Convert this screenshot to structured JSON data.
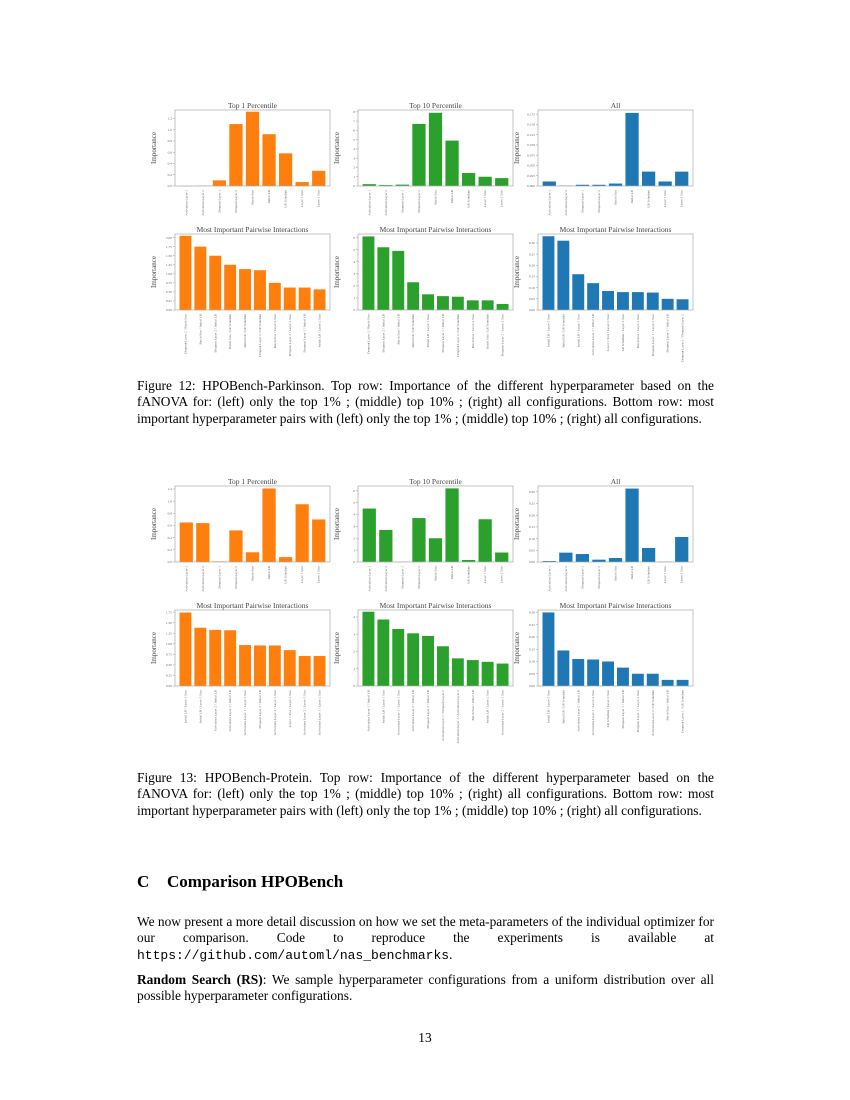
{
  "figure12": {
    "caption": "Figure 12: HPOBench-Parkinson. Top row: Importance of the different hyperparameter based on the fANOVA for: (left) only the top 1% ; (middle) top 10% ; (right) all configurations. Bottom row: most important hyperparameter pairs with (left) only the top 1% ; (middle) top 10% ; (right) all configurations."
  },
  "figure13": {
    "caption": "Figure 13: HPOBench-Protein. Top row: Importance of the different hyperparameter based on the fANOVA for: (left) only the top 1% ; (middle) top 10% ; (right) all configurations. Bottom row: most important hyperparameter pairs with (left) only the top 1% ; (middle) top 10% ; (right) all configurations."
  },
  "section": {
    "number": "C",
    "title": "Comparison HPOBench"
  },
  "paragraph1": {
    "text": "We now present a more detail discussion on how we set the meta-parameters of the individual optimizer for our comparison. Code to reproduce the experiments is available at ",
    "url": "https://github.com/automl/nas_benchmarks",
    "end": "."
  },
  "paragraph2": {
    "bold": "Random Search (RS)",
    "text": ": We sample hyperparameter configurations from a uniform distribution over all possible hyperparameter configurations."
  },
  "page_number": "13",
  "colors": {
    "top1": "#ff7f0e",
    "top10": "#2ca02c",
    "all": "#1f77b4"
  },
  "chart_data": [
    {
      "type": "bar",
      "figure": "12",
      "title": "Top 1 Percentile",
      "ylabel": "Importance",
      "color": "#ff7f0e",
      "categories": [
        "Activation Layer 1",
        "Activation Layer 2",
        "Dropout Layer 1",
        "Dropout Layer 2",
        "Batch Size",
        "Initial LR",
        "LR Schedule",
        "Layer 1 Size",
        "Layer 2 Size"
      ],
      "values": [
        0.0,
        0.005,
        0.1,
        1.1,
        1.32,
        0.92,
        0.58,
        0.07,
        0.27
      ],
      "yticks": [
        "0.0",
        "0.2",
        "0.4",
        "0.6",
        "0.8",
        "1.0",
        "1.2"
      ],
      "ylim": [
        0,
        1.35
      ]
    },
    {
      "type": "bar",
      "figure": "12",
      "title": "Top 10 Percentile",
      "ylabel": "Importance",
      "color": "#2ca02c",
      "categories": [
        "Activation Layer 1",
        "Activation Layer 2",
        "Dropout Layer 1",
        "Dropout Layer 2",
        "Batch Size",
        "Initial LR",
        "LR Schedule",
        "Layer 1 Size",
        "Layer 2 Size"
      ],
      "values": [
        0.2,
        0.1,
        0.15,
        6.7,
        7.9,
        4.9,
        1.4,
        1.0,
        0.85
      ],
      "yticks": [
        "0",
        "1",
        "2",
        "3",
        "4",
        "5",
        "6",
        "7",
        "8"
      ],
      "ylim": [
        0,
        8.2
      ]
    },
    {
      "type": "bar",
      "figure": "12",
      "title": "All",
      "ylabel": "Importance",
      "color": "#1f77b4",
      "categories": [
        "Activation Layer 1",
        "Activation Layer 2",
        "Dropout Layer 1",
        "Dropout Layer 2",
        "Batch Size",
        "Initial LR",
        "LR Schedule",
        "Layer 1 Size",
        "Layer 2 Size"
      ],
      "values": [
        0.011,
        0.001,
        0.003,
        0.003,
        0.006,
        0.178,
        0.035,
        0.011,
        0.035
      ],
      "yticks": [
        "0.000",
        "0.025",
        "0.050",
        "0.075",
        "0.100",
        "0.125",
        "0.150",
        "0.175"
      ],
      "ylim": [
        0,
        0.185
      ]
    },
    {
      "type": "bar",
      "figure": "12",
      "title": "Most Important Pairwise Interactions",
      "ylabel": "Importance",
      "color": "#ff7f0e",
      "categories": [
        "Dropout Layer 2 / Batch Size",
        "Batch Size / Initial LR",
        "Dropout Layer 2 / Initial LR",
        "Batch Size / LR Schedule",
        "Initial LR / LR Schedule",
        "Dropout Layer 2 / LR Schedule",
        "Batch Size / Layer 2 Size",
        "Dropout Layer 2 / Layer 2 Size",
        "Dropout Layer 1 / Initial LR",
        "Initial LR / Layer 2 Size"
      ],
      "values": [
        2.05,
        1.75,
        1.5,
        1.25,
        1.13,
        1.1,
        0.75,
        0.62,
        0.62,
        0.57
      ],
      "yticks": [
        "0.00",
        "0.25",
        "0.50",
        "0.75",
        "1.00",
        "1.25",
        "1.50",
        "1.75",
        "2.00"
      ],
      "ylim": [
        0,
        2.1
      ]
    },
    {
      "type": "bar",
      "figure": "12",
      "title": "Most Important Pairwise Interactions",
      "ylabel": "Importance",
      "color": "#2ca02c",
      "categories": [
        "Dropout Layer 2 / Batch Size",
        "Dropout Layer 2 / Initial LR",
        "Batch Size / Initial LR",
        "Initial LR / LR Schedule",
        "Initial LR / Layer 1 Size",
        "Dropout Layer 1 / Initial LR",
        "Dropout Layer 2 / LR Schedule",
        "Batch Size / Layer 2 Size",
        "Batch Size / LR Schedule",
        "Dropout Layer 2 / Layer 2 Size"
      ],
      "values": [
        6.1,
        5.2,
        4.9,
        2.3,
        1.3,
        1.15,
        1.1,
        0.8,
        0.8,
        0.5
      ],
      "yticks": [
        "0",
        "1",
        "2",
        "3",
        "4",
        "5",
        "6"
      ],
      "ylim": [
        0,
        6.3
      ]
    },
    {
      "type": "bar",
      "figure": "12",
      "title": "Most Important Pairwise Interactions",
      "ylabel": "Importance",
      "color": "#1f77b4",
      "categories": [
        "Initial LR / Layer 2 Size",
        "Initial LR / LR Schedule",
        "Initial LR / Layer 1 Size",
        "Activation Layer 1 / Initial LR",
        "Layer 1 Size / Layer 2 Size",
        "LR Schedule / Layer 2 Size",
        "Batch Size / Layer 2 Size",
        "Dropout Layer 1 / Layer 2 Size",
        "Dropout Layer 1 / Initial LR",
        "Dropout Layer 1 / Dropout Layer 2"
      ],
      "values": [
        0.33,
        0.31,
        0.16,
        0.12,
        0.085,
        0.08,
        0.08,
        0.078,
        0.05,
        0.048
      ],
      "yticks": [
        "0.00",
        "0.05",
        "0.10",
        "0.15",
        "0.20",
        "0.25",
        "0.30"
      ],
      "ylim": [
        0,
        0.34
      ]
    },
    {
      "type": "bar",
      "figure": "13",
      "title": "Top 1 Percentile",
      "ylabel": "Importance",
      "color": "#ff7f0e",
      "categories": [
        "Activation Layer 1",
        "Activation Layer 2",
        "Dropout Layer 1",
        "Dropout Layer 2",
        "Batch Size",
        "Initial LR",
        "LR Schedule",
        "Layer 1 Size",
        "Layer 2 Size"
      ],
      "values": [
        0.65,
        0.64,
        0.01,
        0.52,
        0.16,
        1.21,
        0.08,
        0.95,
        0.7
      ],
      "yticks": [
        "0.0",
        "0.2",
        "0.4",
        "0.6",
        "0.8",
        "1.0",
        "1.2"
      ],
      "ylim": [
        0,
        1.25
      ]
    },
    {
      "type": "bar",
      "figure": "13",
      "title": "Top 10 Percentile",
      "ylabel": "Importance",
      "color": "#2ca02c",
      "categories": [
        "Activation Layer 1",
        "Activation Layer 2",
        "Dropout Layer 1",
        "Dropout Layer 2",
        "Batch Size",
        "Initial LR",
        "LR Schedule",
        "Layer 1 Size",
        "Layer 2 Size"
      ],
      "values": [
        4.5,
        2.7,
        0.02,
        3.7,
        2.0,
        6.2,
        0.17,
        3.6,
        0.8
      ],
      "yticks": [
        "0",
        "1",
        "2",
        "3",
        "4",
        "5",
        "6"
      ],
      "ylim": [
        0,
        6.4
      ]
    },
    {
      "type": "bar",
      "figure": "13",
      "title": "All",
      "ylabel": "Importance",
      "color": "#1f77b4",
      "categories": [
        "Activation Layer 1",
        "Activation Layer 2",
        "Dropout Layer 1",
        "Dropout Layer 2",
        "Batch Size",
        "Initial LR",
        "LR Schedule",
        "Layer 1 Size",
        "Layer 2 Size"
      ],
      "values": [
        0.004,
        0.04,
        0.034,
        0.01,
        0.017,
        0.314,
        0.06,
        0.001,
        0.107
      ],
      "yticks": [
        "0.00",
        "0.05",
        "0.10",
        "0.15",
        "0.20",
        "0.25",
        "0.30"
      ],
      "ylim": [
        0,
        0.325
      ]
    },
    {
      "type": "bar",
      "figure": "13",
      "title": "Most Important Pairwise Interactions",
      "ylabel": "Importance",
      "color": "#ff7f0e",
      "categories": [
        "Initial LR / Layer 1 Size",
        "Initial LR / Layer 2 Size",
        "Activation Layer 2 / Initial LR",
        "Activation Layer 1 / Initial LR",
        "Activation Layer 1 / Layer 1 Size",
        "Dropout Layer 2 / Initial LR",
        "Activation Layer 2 / Layer 1 Size",
        "Layer 1 Size / Layer 2 Size",
        "Activation Layer 2 / Layer 2 Size",
        "Activation Layer 1 / Layer 2 Size"
      ],
      "values": [
        1.74,
        1.38,
        1.33,
        1.32,
        0.97,
        0.96,
        0.96,
        0.85,
        0.71,
        0.71
      ],
      "yticks": [
        "0.00",
        "0.25",
        "0.50",
        "0.75",
        "1.00",
        "1.25",
        "1.50",
        "1.75"
      ],
      "ylim": [
        0,
        1.8
      ]
    },
    {
      "type": "bar",
      "figure": "13",
      "title": "Most Important Pairwise Interactions",
      "ylabel": "Importance",
      "color": "#2ca02c",
      "categories": [
        "Activation Layer 1 / Initial LR",
        "Initial LR / Layer 1 Size",
        "Activation Layer 1 / Layer 1 Size",
        "Activation Layer 2 / Initial LR",
        "Dropout Layer 2 / Initial LR",
        "Activation Layer 1 / Dropout Layer 2",
        "Activation Layer 1 / Activation Layer 2",
        "Batch Size / Initial LR",
        "Initial LR / Layer 2 Size",
        "Activation Layer 2 / Layer 1 Size"
      ],
      "values": [
        4.3,
        3.85,
        3.3,
        3.05,
        2.9,
        2.3,
        1.6,
        1.5,
        1.4,
        1.3
      ],
      "yticks": [
        "0",
        "1",
        "2",
        "3",
        "4"
      ],
      "ylim": [
        0,
        4.4
      ]
    },
    {
      "type": "bar",
      "figure": "13",
      "title": "Most Important Pairwise Interactions",
      "ylabel": "Importance",
      "color": "#1f77b4",
      "categories": [
        "Initial LR / Layer 2 Size",
        "Initial LR / LR Schedule",
        "Activation Layer 2 / Initial LR",
        "Activation Layer 2 / Layer 2 Size",
        "LR Schedule / Layer 2 Size",
        "Dropout Layer 1 / Initial LR",
        "Dropout Layer 1 / Layer 2 Size",
        "Activation Layer 2 / LR Schedule",
        "Batch Size / Initial LR",
        "Dropout Layer 1 / LR Schedule"
      ],
      "values": [
        0.3,
        0.145,
        0.11,
        0.108,
        0.1,
        0.075,
        0.05,
        0.05,
        0.025,
        0.025
      ],
      "yticks": [
        "0.00",
        "0.05",
        "0.10",
        "0.15",
        "0.20",
        "0.25",
        "0.30"
      ],
      "ylim": [
        0,
        0.31
      ]
    }
  ]
}
